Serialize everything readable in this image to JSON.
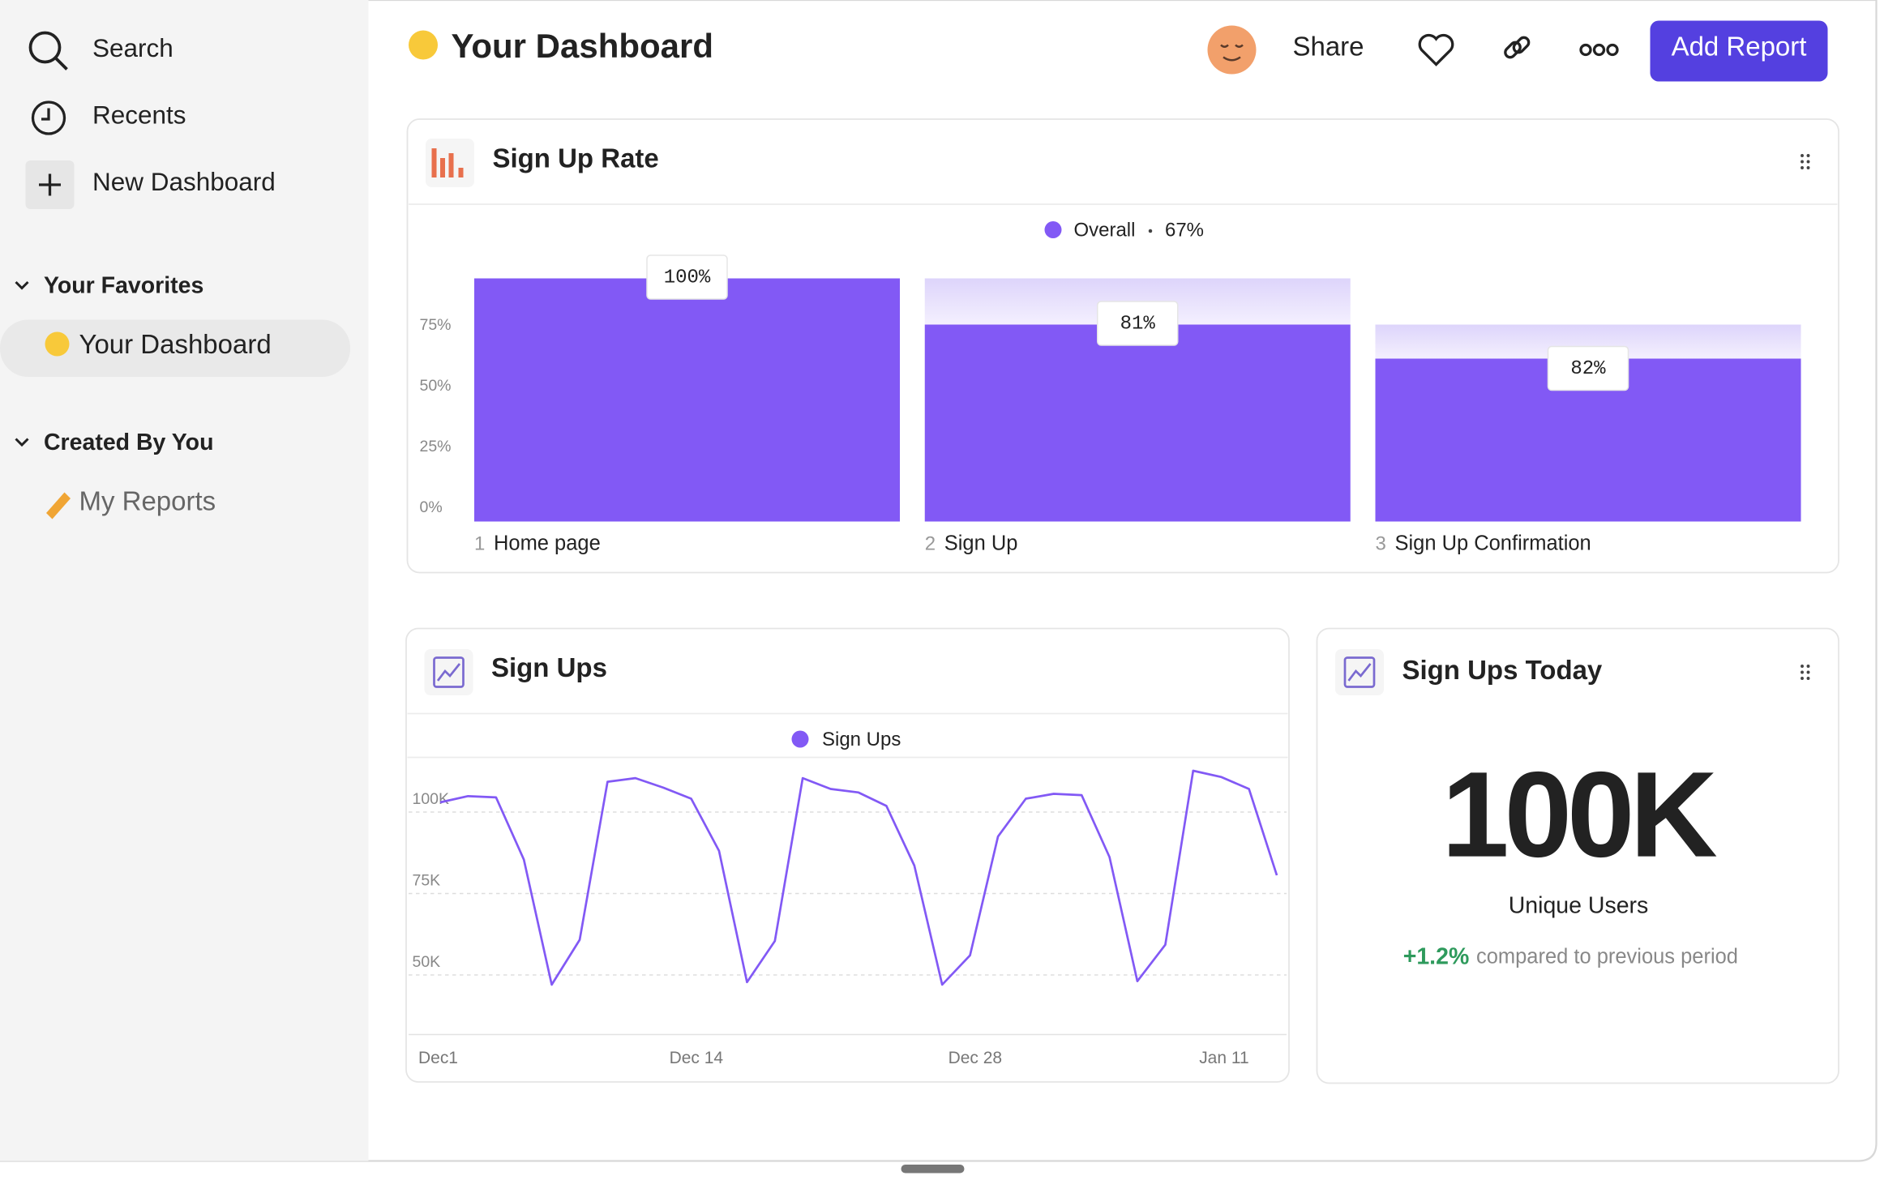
{
  "sidebar": {
    "items": [
      "Search",
      "Recents",
      "New Dashboard"
    ],
    "sections": [
      {
        "title": "Your Favorites",
        "items": [
          "Your Dashboard"
        ]
      },
      {
        "title": "Created By You",
        "items": [
          "My Reports"
        ]
      }
    ]
  },
  "header": {
    "title": "Your Dashboard",
    "share": "Share",
    "button": "Add Report"
  },
  "chart_data": [
    {
      "type": "funnel",
      "title": "Sign Up Rate",
      "categories": [
        "Home page",
        "Sign Up",
        "Sign Up Confirmation"
      ],
      "steps": [
        "1",
        "2",
        "3"
      ],
      "overall_label": "67%",
      "series": [
        {
          "name": "Overall",
          "color": "#8259f5",
          "values": [
            100,
            81,
            67
          ]
        }
      ],
      "step_conversion": {
        "values": [
          100,
          81,
          82
        ],
        "value_labels": [
          "100%",
          "81%",
          "82%"
        ]
      },
      "ylim": [
        0,
        100
      ],
      "yticks": [
        {
          "value": 0,
          "label": "0%"
        },
        {
          "value": 25,
          "label": "25%"
        },
        {
          "value": 50,
          "label": "50%"
        },
        {
          "value": 75,
          "label": "75%"
        }
      ]
    },
    {
      "type": "line",
      "title": "Sign Ups",
      "categories": [
        "Dec1",
        null,
        null,
        null,
        null,
        null,
        null,
        null,
        null,
        "Dec 14",
        null,
        null,
        null,
        null,
        null,
        null,
        null,
        null,
        null,
        "Dec 28",
        null,
        null,
        null,
        null,
        null,
        null,
        null,
        null,
        "Jan 11",
        null,
        null
      ],
      "series": [
        {
          "name": "Sign Ups",
          "color": "#8259f5",
          "values": [
            103000,
            104900,
            104500,
            85400,
            47000,
            60800,
            109300,
            110400,
            107500,
            104100,
            88100,
            47800,
            60400,
            110400,
            107100,
            106000,
            101900,
            83600,
            47000,
            56000,
            92500,
            104100,
            105600,
            105200,
            86200,
            48100,
            59300,
            112700,
            110800,
            107100,
            80600
          ]
        }
      ],
      "ylim": [
        31000,
        117000
      ],
      "yticks": [
        {
          "value": 50000,
          "label": "50K"
        },
        {
          "value": 75000,
          "label": "75K"
        },
        {
          "value": 100000,
          "label": "100K"
        }
      ],
      "grid": true
    }
  ],
  "kpi": {
    "title": "Sign Ups Today",
    "value": 100000,
    "value_label": "100K",
    "metric": "Unique Users",
    "change": 1.2,
    "change_label": "+1.2%",
    "comparison": "compared to previous period"
  }
}
